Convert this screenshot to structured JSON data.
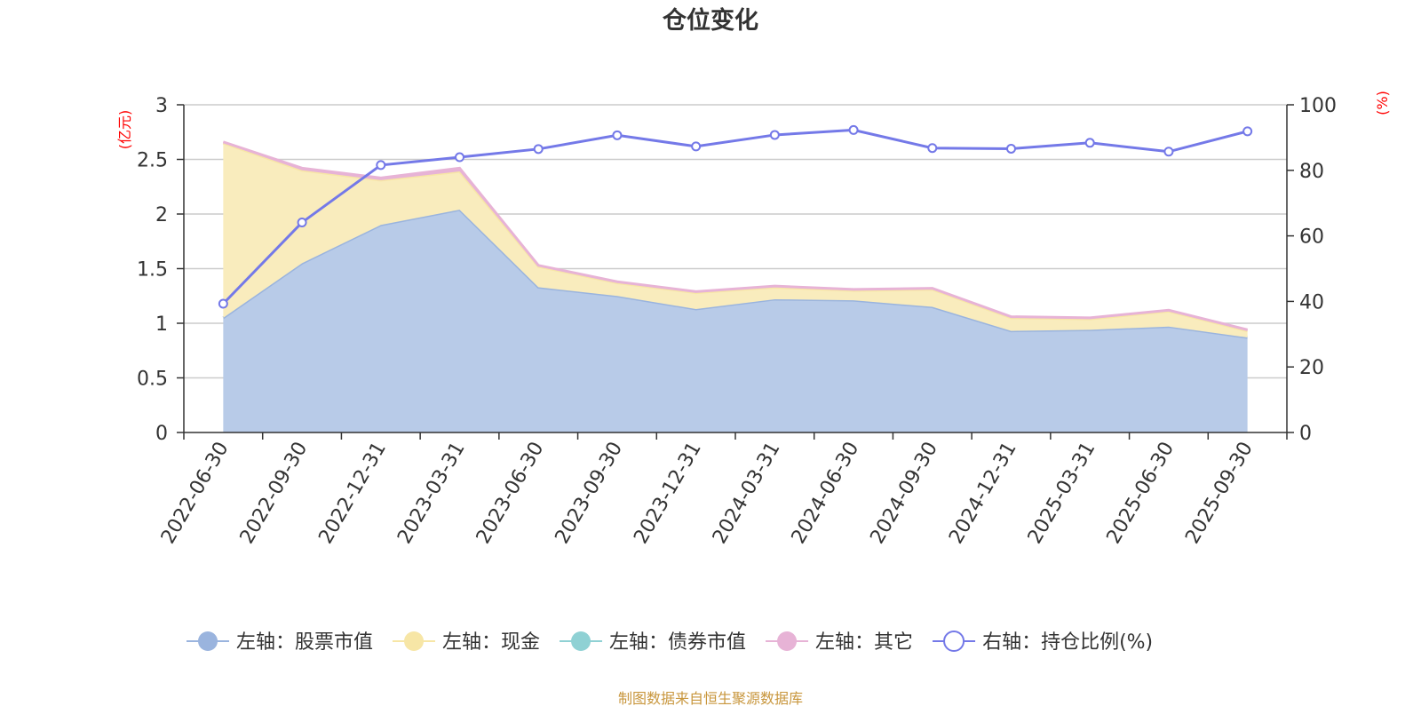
{
  "chart_data": {
    "type": "area",
    "title": "仓位变化",
    "left_axis": {
      "unit_label": "(亿元)",
      "ylim": [
        0,
        3
      ],
      "ticks": [
        "0",
        "0.5",
        "1",
        "1.5",
        "2",
        "2.5",
        "3"
      ]
    },
    "right_axis": {
      "unit_label": "(%)",
      "ylim": [
        0,
        100
      ],
      "ticks": [
        "0",
        "20",
        "40",
        "60",
        "80",
        "100"
      ]
    },
    "categories": [
      "2022-06-30",
      "2022-09-30",
      "2022-12-31",
      "2023-03-31",
      "2023-06-30",
      "2023-09-30",
      "2023-12-31",
      "2024-03-31",
      "2024-06-30",
      "2024-09-30",
      "2024-12-31",
      "2025-03-31",
      "2025-06-30",
      "2025-09-30"
    ],
    "stacked": true,
    "series": [
      {
        "name": "左轴：股票市值",
        "axis": "left",
        "color": "#9ab4de",
        "fill": "#b8cbe8",
        "values": [
          1.05,
          1.55,
          1.9,
          2.04,
          1.33,
          1.25,
          1.13,
          1.22,
          1.21,
          1.15,
          0.93,
          0.94,
          0.97,
          0.87
        ]
      },
      {
        "name": "左轴：现金",
        "axis": "left",
        "color": "#f7e6a6",
        "fill": "#f9ecbd",
        "values": [
          1.6,
          0.85,
          0.41,
          0.35,
          0.19,
          0.12,
          0.15,
          0.11,
          0.09,
          0.16,
          0.12,
          0.1,
          0.14,
          0.06
        ]
      },
      {
        "name": "左轴：债券市值",
        "axis": "left",
        "color": "#8fd1d4",
        "fill": "#8fd1d4",
        "values": [
          0,
          0,
          0,
          0,
          0,
          0,
          0,
          0,
          0,
          0,
          0,
          0,
          0,
          0
        ]
      },
      {
        "name": "左轴：其它",
        "axis": "left",
        "color": "#e7b3d6",
        "fill": "#e7b3d6",
        "values": [
          0.01,
          0.02,
          0.02,
          0.03,
          0.01,
          0.01,
          0.01,
          0.01,
          0.01,
          0.01,
          0.01,
          0.01,
          0.01,
          0.01
        ]
      },
      {
        "name": "右轴：持仓比例(%)",
        "axis": "right",
        "type": "line",
        "color": "#7479e8",
        "values": [
          39.3,
          64.1,
          81.6,
          84.0,
          86.5,
          90.7,
          87.3,
          90.8,
          92.3,
          86.8,
          86.6,
          88.4,
          85.7,
          91.9
        ]
      }
    ],
    "grid": true,
    "legend_position": "bottom"
  },
  "footer": {
    "source": "制图数据来自恒生聚源数据库"
  },
  "colors": {
    "title": "#333333",
    "axis_unit": "#ff0000",
    "gridline": "#cccccc",
    "axis": "#333333",
    "source": "#c8963c"
  }
}
